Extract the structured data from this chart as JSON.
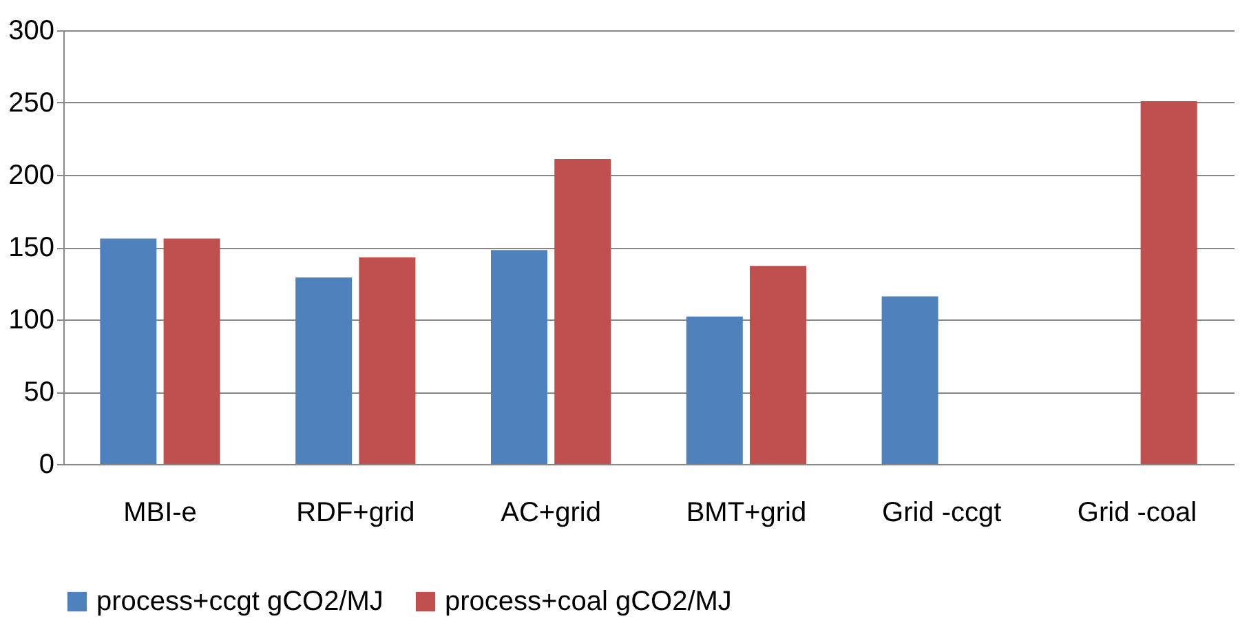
{
  "chart_data": {
    "type": "bar",
    "categories": [
      "MBI-e",
      "RDF+grid",
      "AC+grid",
      "BMT+grid",
      "Grid -ccgt",
      "Grid -coal"
    ],
    "series": [
      {
        "name": "process+ccgt gCO2/MJ",
        "color": "#4f81bd",
        "values": [
          156,
          129,
          148,
          102,
          116,
          null
        ]
      },
      {
        "name": "process+coal gCO2/MJ",
        "color": "#c0504d",
        "values": [
          156,
          143,
          211,
          137,
          null,
          251
        ]
      }
    ],
    "ylim": [
      0,
      300
    ],
    "yticks": [
      0,
      50,
      100,
      150,
      200,
      250,
      300
    ],
    "grid": "y",
    "legend": "bottom"
  }
}
